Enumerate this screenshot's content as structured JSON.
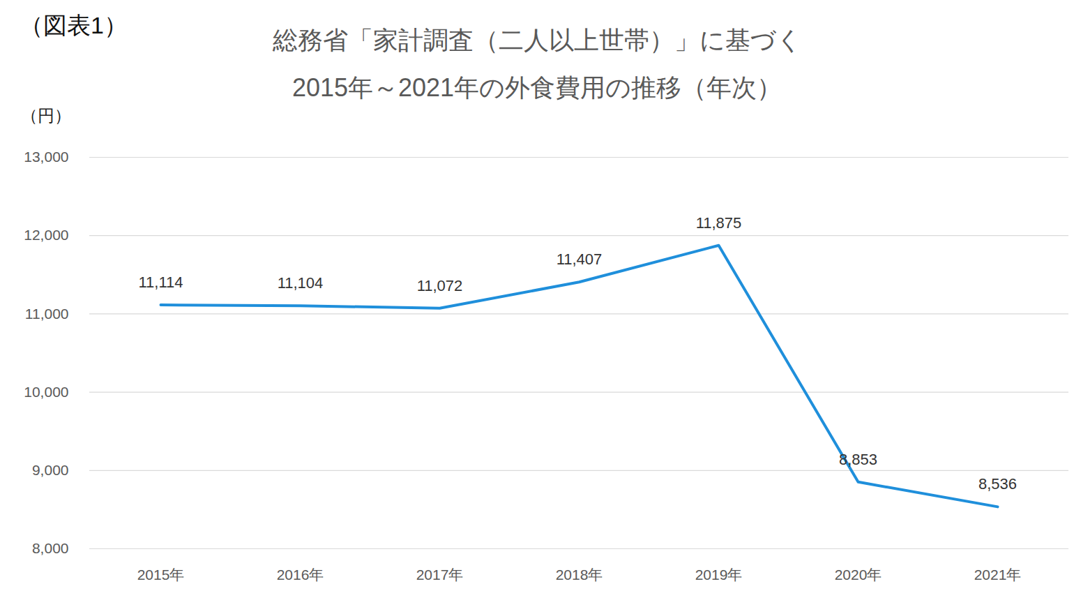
{
  "chart_data": {
    "type": "line",
    "title": "総務省「家計調査（二人以上世帯）」に基づく\n2015年～2021年の外食費用の推移（年次）",
    "annotations": [
      "（図表1）"
    ],
    "ylabel": "（円）",
    "categories": [
      "2015年",
      "2016年",
      "2017年",
      "2018年",
      "2019年",
      "2020年",
      "2021年"
    ],
    "values": [
      11114,
      11104,
      11072,
      11407,
      11875,
      8853,
      8536
    ],
    "value_labels": [
      "11,114",
      "11,104",
      "11,072",
      "11,407",
      "11,875",
      "8,853",
      "8,536"
    ],
    "color": "#1f8fdb",
    "ylim": [
      8000,
      13000
    ],
    "yticks": [
      {
        "value": 8000,
        "label": "8,000"
      },
      {
        "value": 9000,
        "label": "9,000"
      },
      {
        "value": 10000,
        "label": "10,000"
      },
      {
        "value": 11000,
        "label": "11,000"
      },
      {
        "value": 12000,
        "label": "12,000"
      },
      {
        "value": 13000,
        "label": "13,000"
      }
    ],
    "grid": true,
    "data_labels": true
  }
}
